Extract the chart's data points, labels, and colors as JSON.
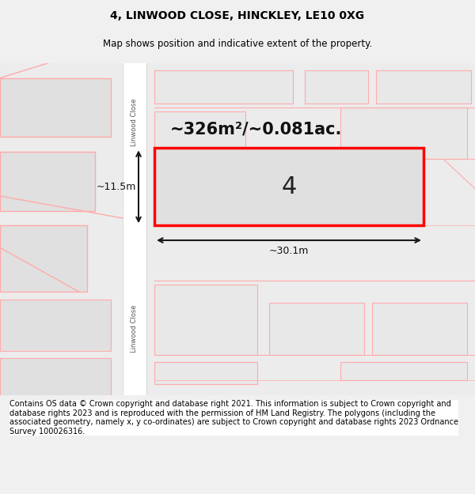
{
  "title": "4, LINWOOD CLOSE, HINCKLEY, LE10 0XG",
  "subtitle": "Map shows position and indicative extent of the property.",
  "footer": "Contains OS data © Crown copyright and database right 2021. This information is subject to Crown copyright and database rights 2023 and is reproduced with the permission of HM Land Registry. The polygons (including the associated geometry, namely x, y co-ordinates) are subject to Crown copyright and database rights 2023 Ordnance Survey 100026316.",
  "area_label": "~326m²/~0.081ac.",
  "plot_number": "4",
  "width_label": "~30.1m",
  "height_label": "~11.5m",
  "road_name_top": "Linwood Close",
  "road_name_bottom": "Linwood Close",
  "bg_color": "#e8e8e8",
  "map_bg": "#f0f0f0",
  "plot_fill": "#dcdcdc",
  "plot_border": "#ff0000",
  "road_fill": "#ffffff",
  "block_fill": "#d8d8d8",
  "block_border": "#ff9999",
  "dim_line_color": "#1a1a1a",
  "text_color": "#000000",
  "footer_bg": "#ffffff",
  "title_fontsize": 10,
  "subtitle_fontsize": 8.5,
  "footer_fontsize": 7
}
